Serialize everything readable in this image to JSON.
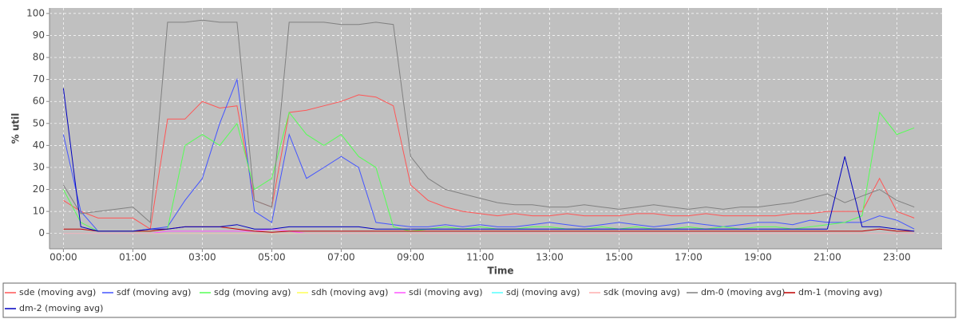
{
  "chart_data": {
    "type": "line",
    "y_label": "% util",
    "x_label": "Time",
    "xlim": [
      -0.4,
      25.3
    ],
    "ylim": [
      -7,
      102.5
    ],
    "yticks": [
      0,
      10,
      20,
      30,
      40,
      50,
      60,
      70,
      80,
      90,
      100
    ],
    "xticks": [
      {
        "value": 0,
        "label": "00:00"
      },
      {
        "value": 2,
        "label": "01:00"
      },
      {
        "value": 4,
        "label": "03:00"
      },
      {
        "value": 6,
        "label": "05:00"
      },
      {
        "value": 8,
        "label": "07:00"
      },
      {
        "value": 10,
        "label": "09:00"
      },
      {
        "value": 12,
        "label": "11:00"
      },
      {
        "value": 14,
        "label": "13:00"
      },
      {
        "value": 16,
        "label": "15:00"
      },
      {
        "value": 18,
        "label": "17:00"
      },
      {
        "value": 20,
        "label": "19:00"
      },
      {
        "value": 22,
        "label": "21:00"
      },
      {
        "value": 24,
        "label": "23:00"
      }
    ],
    "grid": true,
    "x": [
      0,
      0.5,
      1,
      1.5,
      2,
      2.5,
      3,
      3.5,
      4,
      4.5,
      5,
      5.5,
      6,
      6.5,
      7,
      7.5,
      8,
      8.5,
      9,
      9.5,
      10,
      10.5,
      11,
      11.5,
      12,
      12.5,
      13,
      13.5,
      14,
      14.5,
      15,
      15.5,
      16,
      16.5,
      17,
      17.5,
      18,
      18.5,
      19,
      19.5,
      20,
      20.5,
      21,
      21.5,
      22,
      22.5,
      23,
      23.5,
      24,
      24.5
    ],
    "series": [
      {
        "name": "sde (moving avg)",
        "color": "#ff5555",
        "values": [
          15,
          10,
          7,
          7,
          7,
          2,
          52,
          52,
          60,
          57,
          58,
          15,
          12,
          55,
          56,
          58,
          60,
          63,
          62,
          58,
          22,
          15,
          12,
          10,
          9,
          8,
          9,
          8,
          8,
          9,
          8,
          8,
          8,
          9,
          9,
          8,
          8,
          9,
          8,
          8,
          8,
          8,
          9,
          9,
          10,
          10,
          10,
          25,
          10,
          7
        ]
      },
      {
        "name": "sdf (moving avg)",
        "color": "#4455ff",
        "values": [
          45,
          10,
          1,
          1,
          1,
          2,
          3,
          15,
          25,
          50,
          70,
          10,
          5,
          45,
          25,
          30,
          35,
          30,
          5,
          4,
          3,
          3,
          4,
          3,
          4,
          3,
          3,
          4,
          5,
          4,
          3,
          4,
          5,
          4,
          3,
          4,
          5,
          4,
          3,
          4,
          5,
          5,
          4,
          6,
          5,
          5,
          5,
          8,
          6,
          2
        ]
      },
      {
        "name": "sdg (moving avg)",
        "color": "#55ff55",
        "values": [
          20,
          5,
          1,
          1,
          1,
          1,
          2,
          40,
          45,
          40,
          50,
          20,
          25,
          55,
          45,
          40,
          45,
          35,
          30,
          3,
          1,
          2,
          3,
          2,
          3,
          2,
          2,
          3,
          3,
          2,
          2,
          3,
          2,
          3,
          2,
          2,
          3,
          2,
          3,
          2,
          3,
          3,
          2,
          3,
          4,
          5,
          8,
          55,
          45,
          48
        ]
      },
      {
        "name": "sdh (moving avg)",
        "color": "#ffff55",
        "values": [
          0,
          0,
          0,
          0,
          0,
          0,
          0,
          0,
          0,
          0,
          0,
          0,
          0,
          0,
          0,
          0,
          0,
          0,
          0,
          0,
          0,
          0,
          0,
          0,
          0,
          0,
          0,
          0,
          0,
          0,
          0,
          0,
          0,
          0,
          0,
          0,
          0,
          0,
          0,
          0,
          0,
          0,
          0,
          0,
          0,
          0,
          0,
          0,
          0,
          0
        ]
      },
      {
        "name": "sdi (moving avg)",
        "color": "#ff55ff",
        "values": [
          0,
          0,
          0,
          0,
          0,
          0,
          1,
          1,
          1,
          1,
          1,
          1,
          2,
          1,
          0,
          0,
          0,
          0,
          0,
          0,
          0,
          0,
          0,
          0,
          0,
          0,
          0,
          0,
          0,
          0,
          0,
          0,
          0,
          0,
          0,
          0,
          0,
          0,
          0,
          0,
          0,
          0,
          0,
          0,
          0,
          0,
          0,
          0,
          0,
          0
        ]
      },
      {
        "name": "sdj (moving avg)",
        "color": "#55ffff",
        "values": [
          0,
          0,
          0,
          0,
          0,
          0,
          0,
          0,
          0,
          0,
          0,
          0,
          0,
          0,
          0,
          0,
          0,
          0,
          0,
          0,
          0,
          0,
          0,
          0,
          0,
          0,
          0,
          0,
          0,
          0,
          0,
          0,
          0,
          0,
          0,
          0,
          0,
          0,
          0,
          0,
          0,
          0,
          0,
          0,
          0,
          0,
          0,
          0,
          0,
          0
        ]
      },
      {
        "name": "sdk (moving avg)",
        "color": "#ffafaf",
        "values": [
          0,
          0,
          0,
          0,
          0,
          0,
          0,
          0,
          0,
          0,
          0,
          0,
          0,
          0,
          0,
          0,
          0,
          0,
          0,
          0,
          0,
          0,
          0,
          0,
          0,
          0,
          0,
          0,
          0,
          0,
          0,
          0,
          0,
          0,
          0,
          0,
          0,
          0,
          0,
          0,
          0,
          0,
          0,
          0,
          0,
          0,
          0,
          0,
          0,
          0
        ]
      },
      {
        "name": "dm-0 (moving avg)",
        "color": "#808080",
        "values": [
          22,
          9,
          10,
          11,
          12,
          5,
          96,
          96,
          97,
          96,
          96,
          15,
          12,
          96,
          96,
          96,
          95,
          95,
          96,
          95,
          35,
          25,
          20,
          18,
          16,
          14,
          13,
          13,
          12,
          12,
          13,
          12,
          11,
          12,
          13,
          12,
          11,
          12,
          11,
          12,
          12,
          13,
          14,
          16,
          18,
          14,
          17,
          20,
          15,
          12
        ]
      },
      {
        "name": "dm-1 (moving avg)",
        "color": "#c00000",
        "values": [
          2,
          2,
          1,
          1,
          1,
          1,
          2,
          3,
          3,
          3,
          2,
          1,
          0.5,
          1,
          1,
          1,
          1,
          1,
          1,
          1,
          1,
          1,
          1,
          1,
          1,
          1,
          1,
          1,
          1,
          1,
          1,
          1,
          1,
          1,
          1,
          1,
          1,
          1,
          1,
          1,
          1,
          1,
          1,
          1,
          1,
          1,
          1,
          2,
          1,
          1
        ]
      },
      {
        "name": "dm-2 (moving avg)",
        "color": "#0000c0",
        "values": [
          66,
          3,
          1,
          1,
          1,
          2,
          2,
          3,
          3,
          3,
          4,
          2,
          2,
          3,
          3,
          3,
          3,
          3,
          2,
          2,
          2,
          2,
          2,
          2,
          2,
          2,
          2,
          2,
          2,
          2,
          2,
          2,
          2,
          2,
          2,
          2,
          2,
          2,
          2,
          2,
          2,
          2,
          2,
          2,
          2,
          35,
          3,
          3,
          2,
          1
        ]
      }
    ]
  }
}
